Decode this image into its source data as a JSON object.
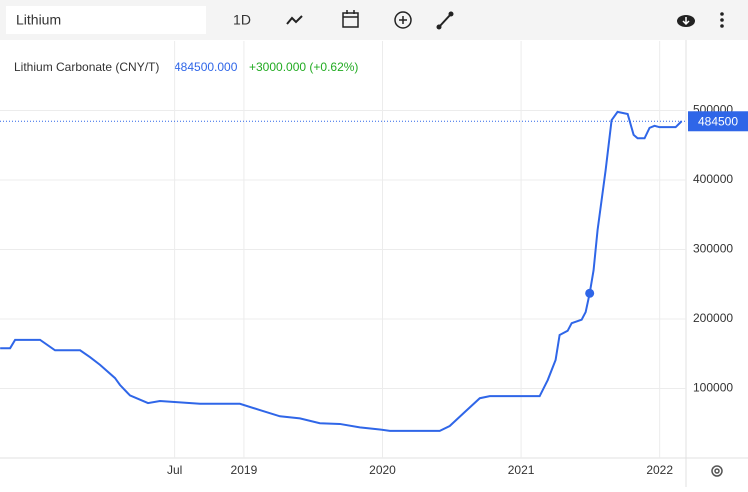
{
  "toolbar": {
    "search": "Lithium",
    "interval": "1D"
  },
  "chart_data": {
    "type": "line",
    "title": "Lithium Carbonate (CNY/T)",
    "last_value_label": "484500.000",
    "change_label": "+3000.000 (+0.62%)",
    "price_tag": "484500",
    "color": "#2f66e8",
    "x": [
      2017.241,
      2017.313,
      2017.349,
      2017.529,
      2017.637,
      2017.818,
      2017.89,
      2017.962,
      2018.07,
      2018.106,
      2018.178,
      2018.308,
      2018.394,
      2018.683,
      2018.971,
      2019.115,
      2019.26,
      2019.404,
      2019.548,
      2019.692,
      2019.836,
      2019.981,
      2020.053,
      2020.413,
      2020.485,
      2020.593,
      2020.702,
      2020.774,
      2021.134,
      2021.192,
      2021.249,
      2021.278,
      2021.336,
      2021.365,
      2021.437,
      2021.466,
      2021.495,
      2021.523,
      2021.552,
      2021.581,
      2021.61,
      2021.653,
      2021.696,
      2021.769,
      2021.812,
      2021.841,
      2021.891,
      2021.927,
      2021.963,
      2021.999,
      2022.115,
      2022.158
    ],
    "values": [
      158000,
      158000,
      170000,
      170000,
      155000,
      155000,
      145000,
      134000,
      115000,
      105000,
      90000,
      79000,
      82000,
      78000,
      78000,
      69000,
      60000,
      57000,
      50000,
      49000,
      44000,
      41000,
      39000,
      39000,
      46000,
      66000,
      86000,
      89000,
      89000,
      112000,
      141000,
      177000,
      183000,
      194000,
      199000,
      210000,
      237000,
      270000,
      328000,
      371000,
      414000,
      486000,
      498000,
      495000,
      465000,
      460000,
      460000,
      475000,
      478000,
      476000,
      476000,
      484500
    ],
    "marker": {
      "x": 2021.495,
      "y": 237000
    },
    "xlim": [
      2017.24,
      2022.19
    ],
    "ylim": [
      0,
      600000
    ],
    "xticks": [
      {
        "value": 2018.5,
        "label": "Jul"
      },
      2019,
      2020,
      2021,
      2022
    ],
    "yticks": [
      100000,
      200000,
      300000,
      400000,
      500000
    ],
    "grid": true
  }
}
